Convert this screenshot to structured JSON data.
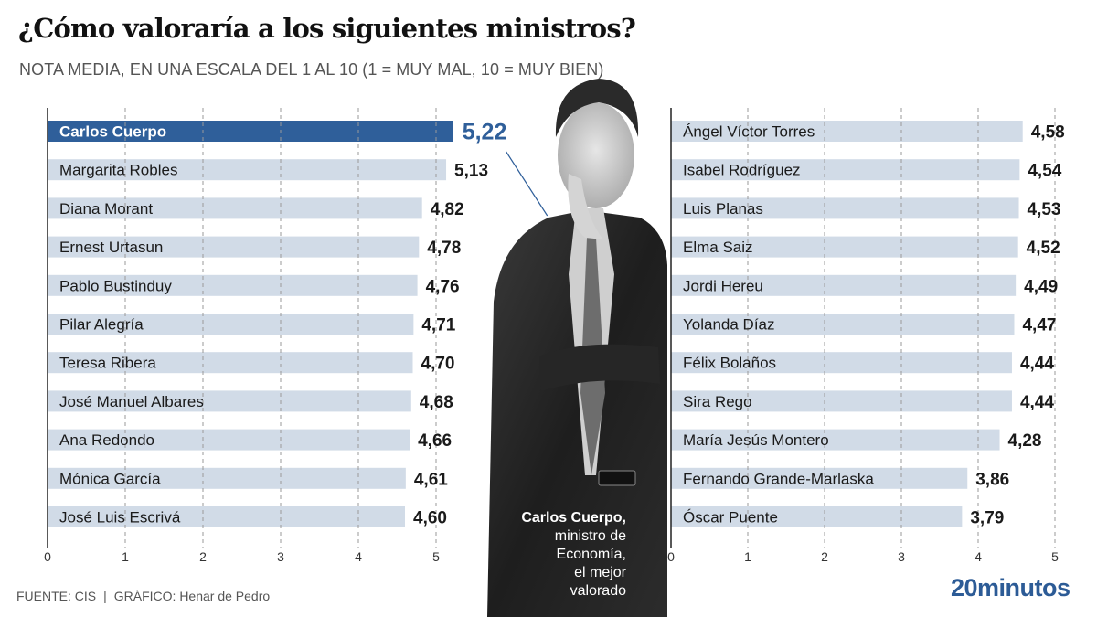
{
  "title": "¿Cómo valoraría a los siguientes ministros?",
  "subtitle": "NOTA MEDIA, EN UNA ESCALA DEL 1 AL 10 (1 = MUY MAL, 10 = MUY BIEN)",
  "footer": {
    "source": "FUENTE: CIS",
    "separator": "|",
    "credit": "GRÁFICO: Henar de Pedro"
  },
  "brand": "20minutos",
  "photo_caption": {
    "name": "Carlos Cuerpo,",
    "line1": "ministro de",
    "line2": "Economía,",
    "line3": "el mejor",
    "line4": "valorado"
  },
  "colors": {
    "highlight": "#2f5f9a",
    "bar": "#d1dbe7",
    "label_highlight": "#ffffff",
    "value_highlight": "#2f5f9a",
    "text": "#1a1a1a",
    "brand": "#2c5b96"
  },
  "chart_data": [
    {
      "type": "bar",
      "orientation": "horizontal",
      "title": "",
      "xlabel": "",
      "ylabel": "",
      "xlim": [
        0,
        5
      ],
      "x_ticks": [
        "0",
        "1",
        "2",
        "3",
        "4",
        "5"
      ],
      "grid": true,
      "highlight": "Carlos Cuerpo",
      "categories": [
        "Carlos Cuerpo",
        "Margarita Robles",
        "Diana Morant",
        "Ernest Urtasun",
        "Pablo Bustinduy",
        "Pilar Alegría",
        "Teresa Ribera",
        "José Manuel Albares",
        "Ana Redondo",
        "Mónica García",
        "José Luis Escrivá"
      ],
      "values": [
        5.22,
        5.13,
        4.82,
        4.78,
        4.76,
        4.71,
        4.7,
        4.68,
        4.66,
        4.61,
        4.6
      ],
      "value_labels": [
        "5,22",
        "5,13",
        "4,82",
        "4,78",
        "4,76",
        "4,71",
        "4,70",
        "4,68",
        "4,66",
        "4,61",
        "4,60"
      ]
    },
    {
      "type": "bar",
      "orientation": "horizontal",
      "title": "",
      "xlabel": "",
      "ylabel": "",
      "xlim": [
        0,
        5
      ],
      "x_ticks": [
        "0",
        "1",
        "2",
        "3",
        "4",
        "5"
      ],
      "grid": true,
      "categories": [
        "Ángel Víctor Torres",
        "Isabel Rodríguez",
        "Luis Planas",
        "Elma Saiz",
        "Jordi Hereu",
        "Yolanda Díaz",
        "Félix Bolaños",
        "Sira Rego",
        "María Jesús Montero",
        "Fernando Grande-Marlaska",
        "Óscar Puente"
      ],
      "values": [
        4.58,
        4.54,
        4.53,
        4.52,
        4.49,
        4.47,
        4.44,
        4.44,
        4.28,
        3.86,
        3.79
      ],
      "value_labels": [
        "4,58",
        "4,54",
        "4,53",
        "4,52",
        "4,49",
        "4,47",
        "4,44",
        "4,44",
        "4,28",
        "3,86",
        "3,79"
      ]
    }
  ]
}
